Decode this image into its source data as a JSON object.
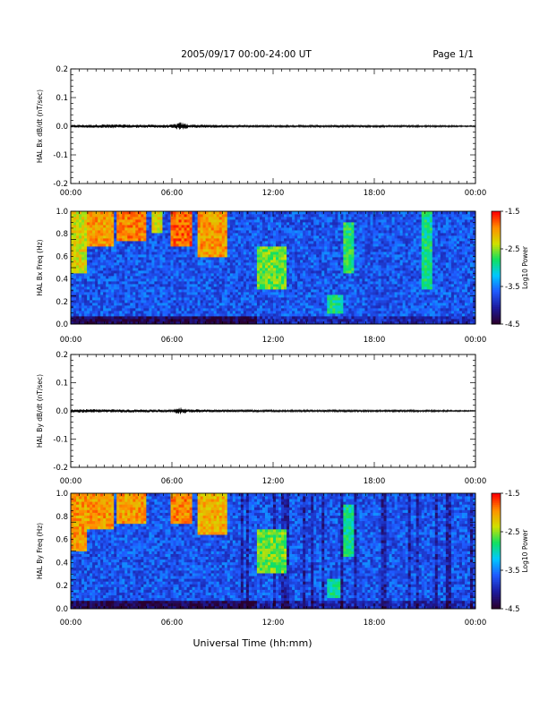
{
  "header": {
    "date_range": "2005/09/17  00:00-24:00 UT",
    "page_label": "Page 1/1"
  },
  "footer": {
    "xaxis_label": "Universal Time (hh:mm)"
  },
  "colors": {
    "trace": "#000000",
    "colormap": [
      "#2a0030",
      "#1c1ca0",
      "#1f5bff",
      "#00c8ff",
      "#10e060",
      "#d0e000",
      "#ff9000",
      "#ff0000"
    ]
  },
  "chart_data": [
    {
      "type": "line",
      "ylabel": "HAL Bx dB/dt (nT/sec)",
      "xlim_hours": [
        0,
        24
      ],
      "ylim": [
        -0.2,
        0.2
      ],
      "yticks": [
        0.2,
        0.1,
        0.0,
        -0.1,
        -0.2
      ],
      "yticklabels": [
        "0.2",
        "0.1",
        "0.0",
        "-0.1",
        "-0.2"
      ],
      "xticklabels": [
        "00:00",
        "06:00",
        "12:00",
        "18:00",
        "00:00"
      ],
      "series": [
        {
          "x": [
            0,
            2,
            4,
            6,
            6.5,
            7,
            9,
            12,
            15,
            18,
            21,
            24
          ],
          "y_envelope": [
            0.004,
            0.006,
            0.005,
            0.005,
            0.012,
            0.006,
            0.004,
            0.003,
            0.003,
            0.003,
            0.003,
            0.002
          ]
        }
      ]
    },
    {
      "type": "heatmap",
      "ylabel": "HAL Bx Freq (Hz)",
      "xlim_hours": [
        0,
        24
      ],
      "ylim": [
        0.0,
        1.0
      ],
      "yticks": [
        1.0,
        0.8,
        0.6,
        0.4,
        0.2,
        0.0
      ],
      "yticklabels": [
        "1.0",
        "0.8",
        "0.6",
        "0.4",
        "0.2",
        "0.0"
      ],
      "xticklabels": [
        "00:00",
        "06:00",
        "12:00",
        "18:00",
        "00:00"
      ],
      "colorbar": {
        "label": "Log10 Power",
        "range": [
          -4.5,
          -1.5
        ],
        "ticks": [
          "-1.5",
          "-2.5",
          "-3.5",
          "-4.5"
        ]
      },
      "features": [
        {
          "t0": 0.0,
          "t1": 1.0,
          "f0": 0.45,
          "f1": 1.0,
          "level": -2.3
        },
        {
          "t0": 1.0,
          "t1": 2.6,
          "f0": 0.7,
          "f1": 1.0,
          "level": -2.0
        },
        {
          "t0": 2.8,
          "t1": 4.5,
          "f0": 0.75,
          "f1": 1.0,
          "level": -1.9
        },
        {
          "t0": 4.8,
          "t1": 5.5,
          "f0": 0.8,
          "f1": 1.0,
          "level": -2.3
        },
        {
          "t0": 6.0,
          "t1": 7.2,
          "f0": 0.7,
          "f1": 1.0,
          "level": -1.8
        },
        {
          "t0": 7.5,
          "t1": 9.3,
          "f0": 0.6,
          "f1": 1.0,
          "level": -2.0
        },
        {
          "t0": 11.0,
          "t1": 12.8,
          "f0": 0.3,
          "f1": 0.7,
          "level": -2.6
        },
        {
          "t0": 15.2,
          "t1": 16.2,
          "f0": 0.1,
          "f1": 0.25,
          "level": -2.9
        },
        {
          "t0": 16.2,
          "t1": 16.8,
          "f0": 0.45,
          "f1": 0.9,
          "level": -2.8
        },
        {
          "t0": 20.8,
          "t1": 21.4,
          "f0": 0.3,
          "f1": 1.0,
          "level": -2.9
        }
      ]
    },
    {
      "type": "line",
      "ylabel": "HAL By dB/dt (nT/sec)",
      "xlim_hours": [
        0,
        24
      ],
      "ylim": [
        -0.2,
        0.2
      ],
      "yticks": [
        0.2,
        0.1,
        0.0,
        -0.1,
        -0.2
      ],
      "yticklabels": [
        "0.2",
        "0.1",
        "0.0",
        "-0.1",
        "-0.2"
      ],
      "xticklabels": [
        "00:00",
        "06:00",
        "12:00",
        "18:00",
        "00:00"
      ],
      "series": [
        {
          "x": [
            0,
            2,
            4,
            6,
            6.5,
            7,
            9,
            12,
            15,
            18,
            21,
            24
          ],
          "y_envelope": [
            0.006,
            0.005,
            0.005,
            0.004,
            0.01,
            0.005,
            0.004,
            0.003,
            0.003,
            0.003,
            0.003,
            0.002
          ]
        }
      ]
    },
    {
      "type": "heatmap",
      "ylabel": "HAL By Freq (Hz)",
      "xlim_hours": [
        0,
        24
      ],
      "ylim": [
        0.0,
        1.0
      ],
      "yticks": [
        1.0,
        0.8,
        0.6,
        0.4,
        0.2,
        0.0
      ],
      "yticklabels": [
        "1.0",
        "0.8",
        "0.6",
        "0.4",
        "0.2",
        "0.0"
      ],
      "xticklabels": [
        "00:00",
        "06:00",
        "12:00",
        "18:00",
        "00:00"
      ],
      "colorbar": {
        "label": "Log10 Power",
        "range": [
          -4.5,
          -1.5
        ],
        "ticks": [
          "-1.5",
          "-2.5",
          "-3.5",
          "-4.5"
        ]
      },
      "features": [
        {
          "t0": 0.0,
          "t1": 1.0,
          "f0": 0.5,
          "f1": 1.0,
          "level": -2.0
        },
        {
          "t0": 1.0,
          "t1": 2.5,
          "f0": 0.7,
          "f1": 1.0,
          "level": -2.0
        },
        {
          "t0": 2.7,
          "t1": 4.5,
          "f0": 0.75,
          "f1": 1.0,
          "level": -2.0
        },
        {
          "t0": 6.0,
          "t1": 7.2,
          "f0": 0.75,
          "f1": 1.0,
          "level": -1.9
        },
        {
          "t0": 7.5,
          "t1": 9.3,
          "f0": 0.65,
          "f1": 1.0,
          "level": -2.1
        },
        {
          "t0": 11.0,
          "t1": 12.8,
          "f0": 0.3,
          "f1": 0.7,
          "level": -2.6
        },
        {
          "t0": 15.2,
          "t1": 16.0,
          "f0": 0.1,
          "f1": 0.25,
          "level": -2.9
        },
        {
          "t0": 16.2,
          "t1": 16.8,
          "f0": 0.45,
          "f1": 0.9,
          "level": -2.9
        }
      ]
    }
  ]
}
